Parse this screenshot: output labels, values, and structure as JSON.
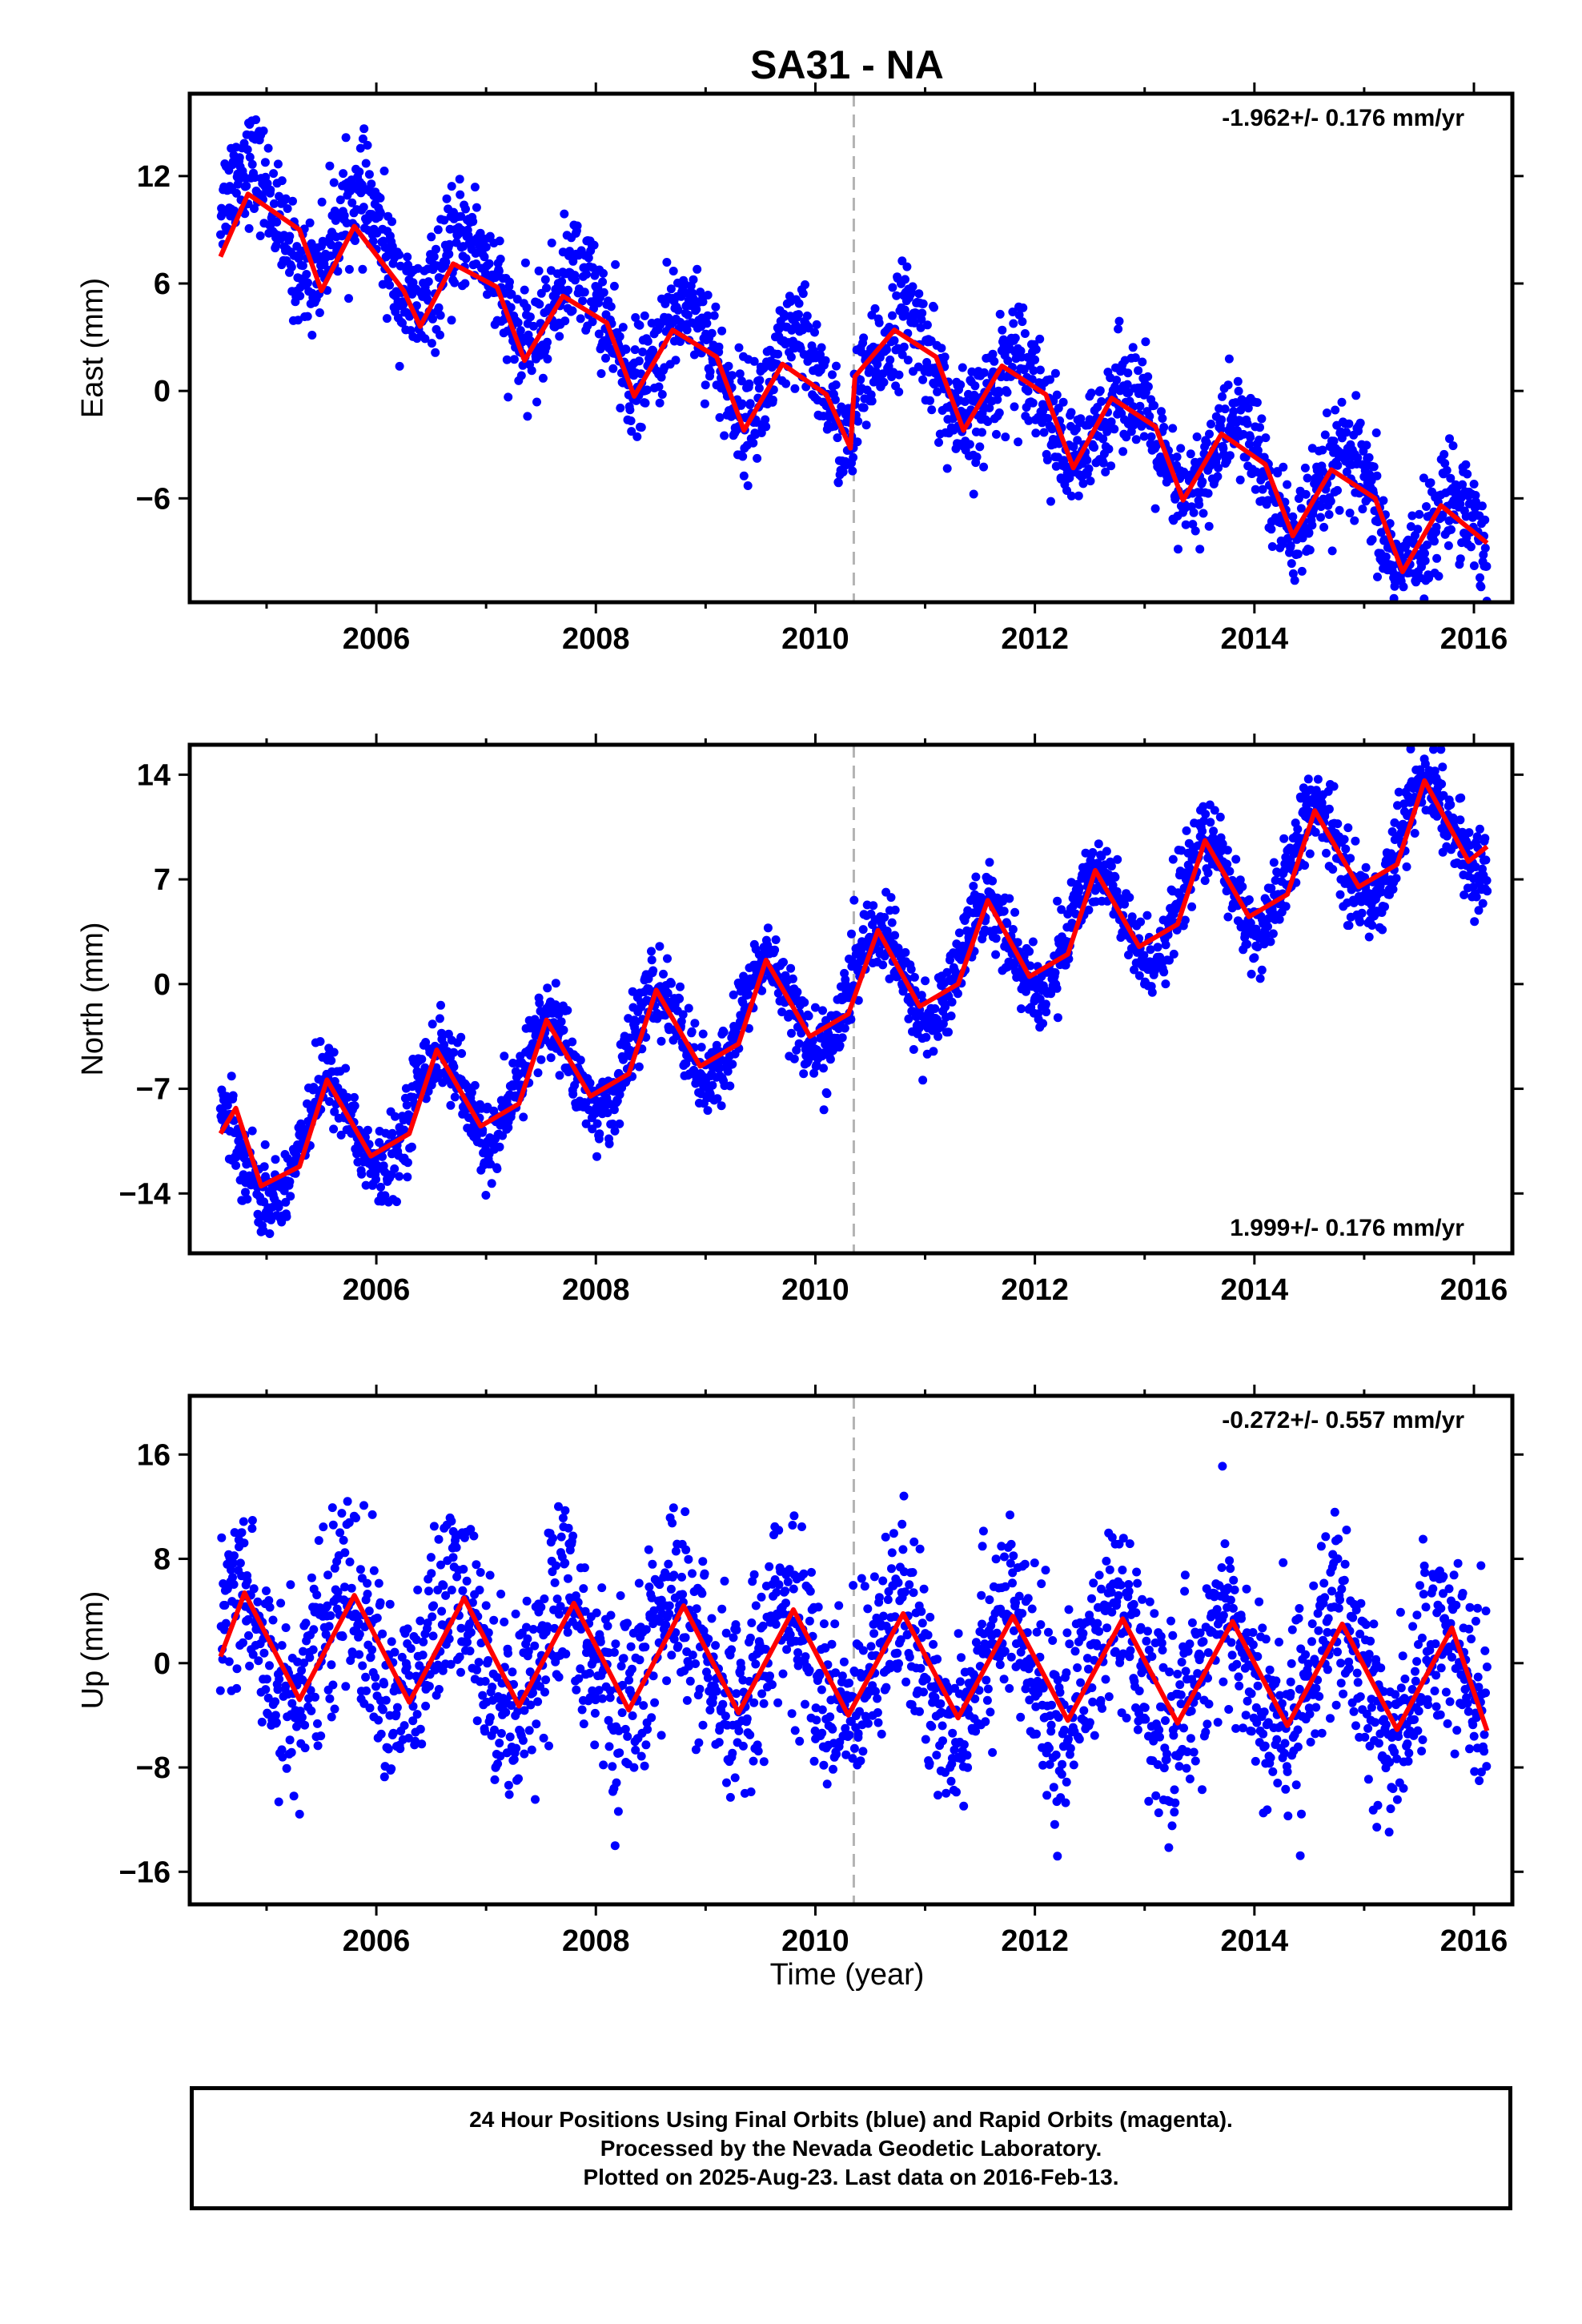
{
  "page": {
    "title": "SA31 - NA",
    "xlabel": "Time (year)"
  },
  "colors": {
    "final_orbits": "#0000ff",
    "model_fit": "#ff0000",
    "event_line": "#b3b3b3",
    "frame": "#000000"
  },
  "footer": {
    "lines": [
      "24 Hour Positions Using Final Orbits (blue) and Rapid Orbits (magenta).",
      "Processed by the Nevada Geodetic Laboratory.",
      "Plotted on 2025-Aug-23. Last data on 2016-Feb-13."
    ]
  },
  "chart_data": [
    {
      "type": "scatter",
      "panel": "east",
      "ylabel": "East (mm)",
      "rate_label": "-1.962+/- 0.176 mm/yr",
      "rate_label_position": "top-right",
      "xlim": [
        2004.3,
        2016.35
      ],
      "ylim": [
        -11.8,
        16.6
      ],
      "x_ticks": [
        2006,
        2008,
        2010,
        2012,
        2014,
        2016
      ],
      "y_ticks": [
        -6,
        0,
        6,
        12
      ],
      "event_line_x": 2010.35,
      "grid": false,
      "series": [
        {
          "name": "Final Orbits (blue)",
          "role": "daily positions",
          "x_start": 2004.58,
          "x_end": 2016.12,
          "trend_rate": -1.962,
          "offset_at_start": 10.6,
          "annual_amplitude": 2.6,
          "annual_phase_year": 2004.85,
          "scatter_sigma": 1.5,
          "offset_at_event": 3.2
        },
        {
          "name": "model",
          "role": "model fit (red)",
          "points": [
            [
              2004.58,
              7.5
            ],
            [
              2004.83,
              11.0
            ],
            [
              2005.3,
              9.0
            ],
            [
              2005.5,
              5.6
            ],
            [
              2005.8,
              9.2
            ],
            [
              2006.25,
              5.6
            ],
            [
              2006.4,
              3.6
            ],
            [
              2006.7,
              7.1
            ],
            [
              2007.1,
              5.8
            ],
            [
              2007.35,
              1.7
            ],
            [
              2007.7,
              5.3
            ],
            [
              2008.1,
              3.8
            ],
            [
              2008.35,
              -0.3
            ],
            [
              2008.7,
              3.4
            ],
            [
              2009.1,
              1.9
            ],
            [
              2009.35,
              -2.2
            ],
            [
              2009.7,
              1.5
            ],
            [
              2010.1,
              -0.2
            ],
            [
              2010.32,
              -3.2
            ],
            [
              2010.36,
              0.8
            ],
            [
              2010.72,
              3.4
            ],
            [
              2011.1,
              1.9
            ],
            [
              2011.35,
              -2.2
            ],
            [
              2011.7,
              1.4
            ],
            [
              2012.1,
              -0.2
            ],
            [
              2012.35,
              -4.3
            ],
            [
              2012.7,
              -0.4
            ],
            [
              2013.1,
              -2.0
            ],
            [
              2013.35,
              -6.1
            ],
            [
              2013.7,
              -2.4
            ],
            [
              2014.1,
              -4.1
            ],
            [
              2014.35,
              -8.1
            ],
            [
              2014.7,
              -4.4
            ],
            [
              2015.1,
              -6.0
            ],
            [
              2015.35,
              -10.1
            ],
            [
              2015.7,
              -6.4
            ],
            [
              2016.12,
              -8.5
            ]
          ]
        }
      ]
    },
    {
      "type": "scatter",
      "panel": "north",
      "ylabel": "North (mm)",
      "rate_label": "1.999+/- 0.176 mm/yr",
      "rate_label_position": "bottom-right",
      "xlim": [
        2004.3,
        2016.35
      ],
      "ylim": [
        -18,
        16
      ],
      "x_ticks": [
        2006,
        2008,
        2010,
        2012,
        2014,
        2016
      ],
      "y_ticks": [
        -14,
        -7,
        0,
        7,
        14
      ],
      "event_line_x": 2010.35,
      "grid": false,
      "series": [
        {
          "name": "Final Orbits (blue)",
          "role": "daily positions",
          "x_start": 2004.58,
          "x_end": 2016.12,
          "trend_rate": 1.999,
          "offset_at_start": -12.0,
          "annual_amplitude": 3.5,
          "annual_phase_year": 2004.55,
          "scatter_sigma": 1.3
        },
        {
          "name": "model",
          "role": "model fit (red)",
          "points": [
            [
              2004.58,
              -10.0
            ],
            [
              2004.72,
              -8.3
            ],
            [
              2004.95,
              -13.5
            ],
            [
              2005.3,
              -12.2
            ],
            [
              2005.55,
              -6.4
            ],
            [
              2005.95,
              -11.5
            ],
            [
              2006.3,
              -10.0
            ],
            [
              2006.55,
              -4.4
            ],
            [
              2006.95,
              -9.5
            ],
            [
              2007.3,
              -8.0
            ],
            [
              2007.55,
              -2.4
            ],
            [
              2007.95,
              -7.5
            ],
            [
              2008.3,
              -6.0
            ],
            [
              2008.55,
              -0.4
            ],
            [
              2008.95,
              -5.5
            ],
            [
              2009.3,
              -4.0
            ],
            [
              2009.55,
              1.6
            ],
            [
              2009.95,
              -3.5
            ],
            [
              2010.3,
              -2.0
            ],
            [
              2010.57,
              3.6
            ],
            [
              2010.95,
              -1.5
            ],
            [
              2011.3,
              0.0
            ],
            [
              2011.57,
              5.6
            ],
            [
              2011.95,
              0.5
            ],
            [
              2012.3,
              2.0
            ],
            [
              2012.55,
              7.6
            ],
            [
              2012.95,
              2.5
            ],
            [
              2013.3,
              4.0
            ],
            [
              2013.55,
              9.6
            ],
            [
              2013.95,
              4.5
            ],
            [
              2014.3,
              6.0
            ],
            [
              2014.55,
              11.6
            ],
            [
              2014.95,
              6.5
            ],
            [
              2015.3,
              8.0
            ],
            [
              2015.55,
              13.6
            ],
            [
              2015.95,
              8.2
            ],
            [
              2016.12,
              9.2
            ]
          ]
        }
      ]
    },
    {
      "type": "scatter",
      "panel": "up",
      "ylabel": "Up (mm)",
      "rate_label": "-0.272+/- 0.557 mm/yr",
      "rate_label_position": "top-right",
      "xlim": [
        2004.3,
        2016.35
      ],
      "ylim": [
        -18.5,
        20.5
      ],
      "x_ticks": [
        2006,
        2008,
        2010,
        2012,
        2014,
        2016
      ],
      "y_ticks": [
        -16,
        -8,
        0,
        8,
        16
      ],
      "event_line_x": 2010.35,
      "grid": false,
      "series": [
        {
          "name": "Final Orbits (blue)",
          "role": "daily positions",
          "x_start": 2004.58,
          "x_end": 2016.12,
          "trend_rate": -0.272,
          "offset_at_start": 1.5,
          "annual_amplitude": 4.2,
          "annual_phase_year": 2004.72,
          "scatter_sigma": 3.6
        },
        {
          "name": "model",
          "role": "model fit (red)",
          "points": [
            [
              2004.58,
              0.5
            ],
            [
              2004.8,
              5.4
            ],
            [
              2005.3,
              -2.8
            ],
            [
              2005.8,
              5.2
            ],
            [
              2006.3,
              -3.0
            ],
            [
              2006.8,
              5.0
            ],
            [
              2007.3,
              -3.3
            ],
            [
              2007.8,
              4.6
            ],
            [
              2008.3,
              -3.6
            ],
            [
              2008.8,
              4.4
            ],
            [
              2009.3,
              -3.8
            ],
            [
              2009.8,
              4.1
            ],
            [
              2010.3,
              -4.0
            ],
            [
              2010.8,
              3.8
            ],
            [
              2011.3,
              -4.2
            ],
            [
              2011.8,
              3.6
            ],
            [
              2012.3,
              -4.4
            ],
            [
              2012.8,
              3.4
            ],
            [
              2013.3,
              -4.6
            ],
            [
              2013.8,
              3.2
            ],
            [
              2014.3,
              -4.8
            ],
            [
              2014.8,
              3.0
            ],
            [
              2015.3,
              -5.1
            ],
            [
              2015.8,
              2.7
            ],
            [
              2016.12,
              -5.2
            ]
          ]
        }
      ]
    }
  ]
}
